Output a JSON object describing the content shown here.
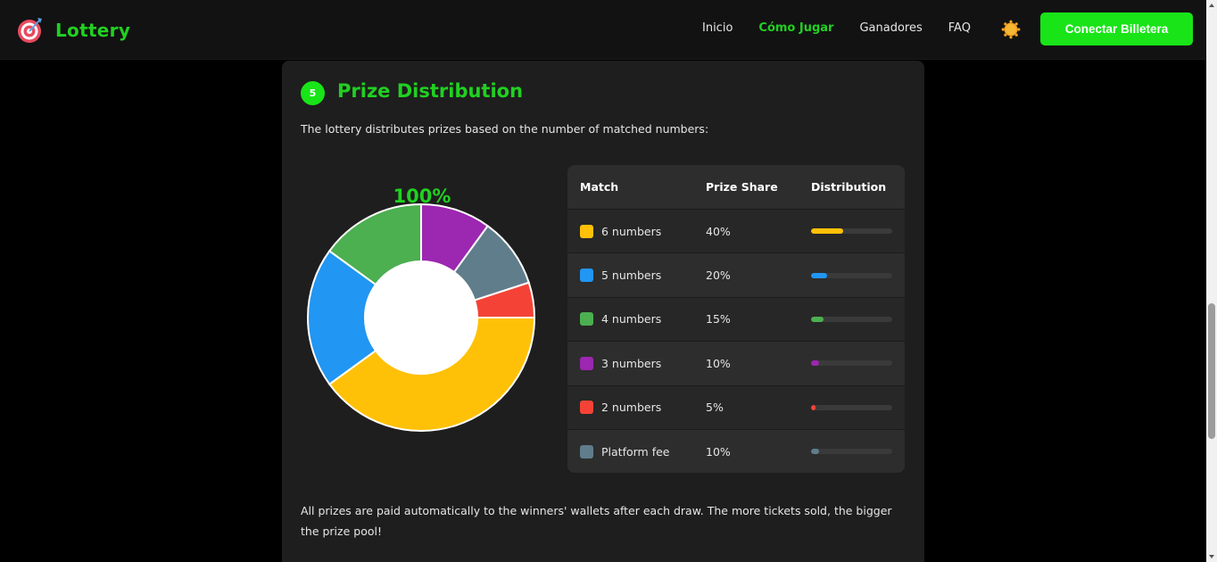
{
  "header": {
    "brand": "Lottery",
    "nav": [
      {
        "label": "Inicio",
        "active": false
      },
      {
        "label": "Cómo Jugar",
        "active": true
      },
      {
        "label": "Ganadores",
        "active": false
      },
      {
        "label": "FAQ",
        "active": false
      }
    ],
    "theme_icon": "sun-icon",
    "wallet_button": "Conectar Billetera"
  },
  "section": {
    "step": "5",
    "title": "Prize Distribution",
    "intro": "The lottery distributes prizes based on the number of matched numbers:",
    "outro": "All prizes are paid automatically to the winners' wallets after each draw. The more tickets sold, the bigger the prize pool!"
  },
  "chart_data": {
    "type": "pie",
    "center_label": "100%",
    "categories": [
      "6 numbers",
      "5 numbers",
      "4 numbers",
      "3 numbers",
      "2 numbers",
      "Platform fee"
    ],
    "values": [
      40,
      20,
      15,
      10,
      5,
      10
    ],
    "colors": [
      "#ffc107",
      "#2196f3",
      "#4caf50",
      "#9c27b0",
      "#f44336",
      "#607d8b"
    ]
  },
  "table": {
    "headers": [
      "Match",
      "Prize Share",
      "Distribution"
    ],
    "rows": [
      {
        "match": "6 numbers",
        "share": "40%",
        "value": 40,
        "color": "#ffc107"
      },
      {
        "match": "5 numbers",
        "share": "20%",
        "value": 20,
        "color": "#2196f3"
      },
      {
        "match": "4 numbers",
        "share": "15%",
        "value": 15,
        "color": "#4caf50"
      },
      {
        "match": "3 numbers",
        "share": "10%",
        "value": 10,
        "color": "#9c27b0"
      },
      {
        "match": "2 numbers",
        "share": "5%",
        "value": 5,
        "color": "#f44336"
      },
      {
        "match": "Platform fee",
        "share": "10%",
        "value": 10,
        "color": "#607d8b"
      }
    ]
  },
  "colors": {
    "accent": "#21d021",
    "button": "#18e418",
    "background": "#000000",
    "card": "#1e1e1e"
  }
}
